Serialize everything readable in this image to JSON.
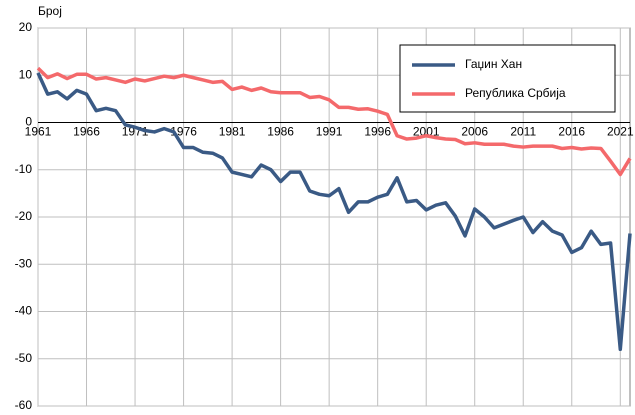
{
  "chart_data": {
    "type": "line",
    "y_label": "Број",
    "x": [
      1961,
      1962,
      1963,
      1964,
      1965,
      1966,
      1967,
      1968,
      1969,
      1970,
      1971,
      1972,
      1973,
      1974,
      1975,
      1976,
      1977,
      1978,
      1979,
      1980,
      1981,
      1982,
      1983,
      1984,
      1985,
      1986,
      1987,
      1988,
      1989,
      1990,
      1991,
      1992,
      1993,
      1994,
      1995,
      1996,
      1997,
      1998,
      1999,
      2000,
      2001,
      2002,
      2003,
      2004,
      2005,
      2006,
      2007,
      2008,
      2009,
      2010,
      2011,
      2012,
      2013,
      2014,
      2015,
      2016,
      2017,
      2018,
      2019,
      2020,
      2021,
      2022
    ],
    "series": [
      {
        "name": "Гаџин Хан",
        "color": "#3a5a85",
        "values": [
          10.5,
          6,
          6.5,
          5,
          6.8,
          6,
          2.5,
          3,
          2.5,
          -0.5,
          -1,
          -1.7,
          -2,
          -1.3,
          -2,
          -5.3,
          -5.3,
          -6.3,
          -6.5,
          -7.5,
          -10.5,
          -11,
          -11.5,
          -9,
          -10,
          -12.5,
          -10.5,
          -10.5,
          -14.5,
          -15.2,
          -15.5,
          -14,
          -19,
          -16.8,
          -16.8,
          -15.8,
          -15.2,
          -11.7,
          -16.8,
          -16.5,
          -18.5,
          -17.5,
          -17,
          -19.8,
          -24,
          -18.3,
          -20,
          -22.3,
          -21.5,
          -20.7,
          -20,
          -23.3,
          -21,
          -23,
          -23.8,
          -27.5,
          -26.5,
          -23,
          -25.8,
          -25.5,
          -48,
          -23.5
        ]
      },
      {
        "name": "Република Србија",
        "color": "#f4696b",
        "values": [
          11.5,
          9.5,
          10.3,
          9.3,
          10.2,
          10.2,
          9.2,
          9.5,
          9,
          8.5,
          9.2,
          8.8,
          9.3,
          9.8,
          9.5,
          10,
          9.5,
          9,
          8.5,
          8.7,
          7,
          7.5,
          6.8,
          7.3,
          6.5,
          6.3,
          6.3,
          6.3,
          5.3,
          5.5,
          4.8,
          3.2,
          3.2,
          2.8,
          2.9,
          2.4,
          1.7,
          -2.8,
          -3.5,
          -3.3,
          -2.8,
          -3.2,
          -3.5,
          -3.6,
          -4.5,
          -4.3,
          -4.6,
          -4.6,
          -4.6,
          -5,
          -5.2,
          -5,
          -5,
          -5,
          -5.5,
          -5.3,
          -5.6,
          -5.4,
          -5.5,
          -8.2,
          -11,
          -7.6
        ]
      }
    ],
    "xlim": [
      1961,
      2022
    ],
    "xticks": [
      1961,
      1966,
      1971,
      1976,
      1981,
      1986,
      1991,
      1996,
      2001,
      2006,
      2011,
      2016,
      2021
    ],
    "ylim": [
      -60,
      20
    ],
    "yticks": [
      -60,
      -50,
      -40,
      -30,
      -20,
      -10,
      0,
      10,
      20
    ],
    "grid": true,
    "legend": "upper right"
  }
}
